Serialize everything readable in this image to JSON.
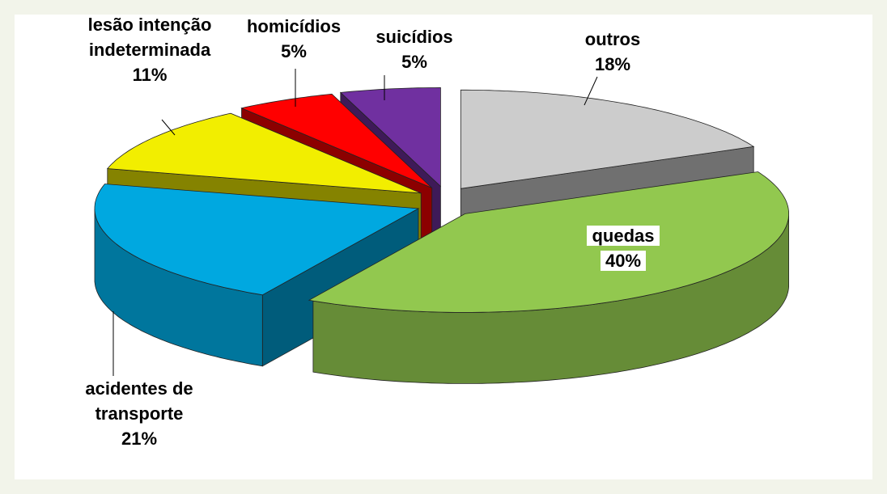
{
  "chart_data": {
    "type": "pie3d",
    "categories": [
      "outros",
      "quedas",
      "acidentes de transporte",
      "lesão intenção indeterminada",
      "homicídios",
      "suicídios"
    ],
    "values": [
      18,
      40,
      21,
      11,
      5,
      5
    ],
    "value_labels": [
      "18%",
      "40%",
      "21%",
      "11%",
      "5%",
      "5%"
    ],
    "colors": [
      "#cccccc",
      "#92c84f",
      "#00a8e0",
      "#f2ee00",
      "#ff0000",
      "#7030a0"
    ]
  }
}
